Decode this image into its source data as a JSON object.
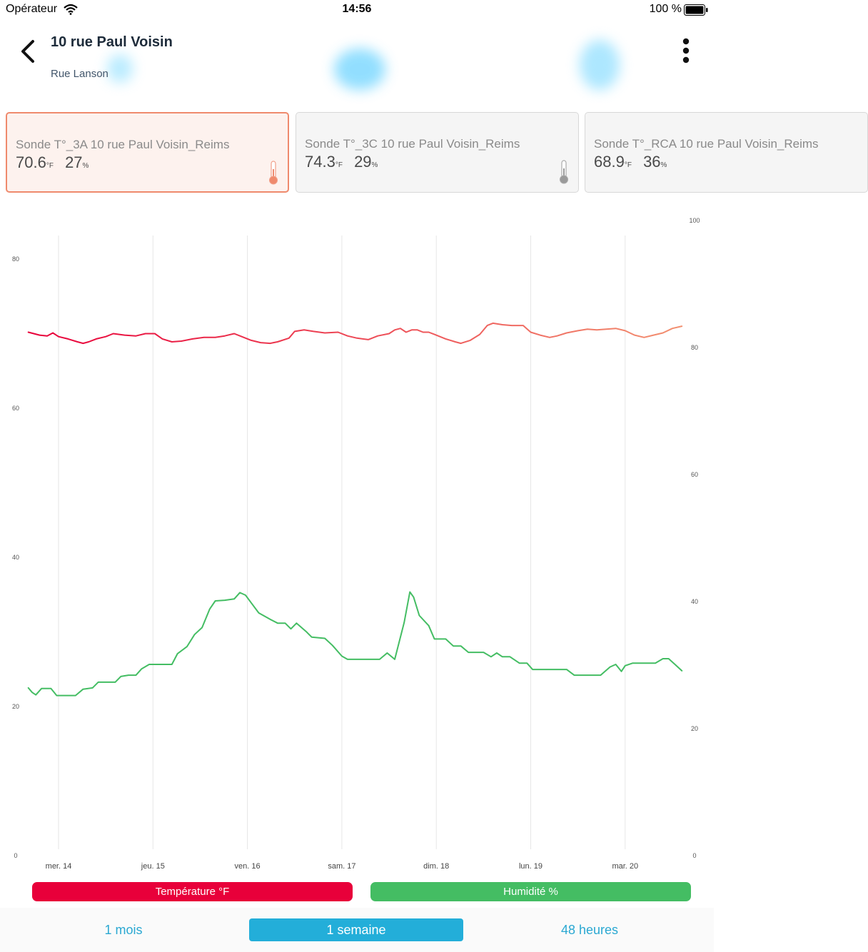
{
  "status_bar": {
    "carrier": "Opérateur",
    "time": "14:56",
    "battery": "100 %"
  },
  "header": {
    "title": "10 rue Paul Voisin",
    "subtitle": "Rue Lanson",
    "back_icon": "chevron-left-icon",
    "menu_icon": "more-vertical-icon"
  },
  "sensors": [
    {
      "name": "Sonde T°_3A 10 rue Paul Voisin_Reims",
      "temperature": "70.6",
      "temp_unit": "°F",
      "humidity": "27",
      "hum_unit": "%",
      "selected": true,
      "icon": "thermometer-icon"
    },
    {
      "name": "Sonde T°_3C 10 rue Paul Voisin_Reims",
      "temperature": "74.3",
      "temp_unit": "°F",
      "humidity": "29",
      "hum_unit": "%",
      "selected": false,
      "icon": "thermometer-icon"
    },
    {
      "name": "Sonde T°_RCA 10 rue Paul Voisin_Reims",
      "temperature": "68.9",
      "temp_unit": "°F",
      "humidity": "36",
      "hum_unit": "%",
      "selected": false,
      "icon": "thermometer-icon"
    }
  ],
  "legend": {
    "temperature": "Température °F",
    "humidity": "Humidité %"
  },
  "ranges": {
    "month": "1 mois",
    "week": "1 semaine",
    "hours48": "48 heures",
    "selected": "week"
  },
  "colors": {
    "temperature": "#e8003a",
    "humidity": "#44bd63",
    "accent": "#23aed9",
    "selected_card_border": "#ef8a6d"
  },
  "chart_data": {
    "type": "line",
    "x_range": [
      -0.3,
      6.6
    ],
    "x_ticks": [
      {
        "x": 0,
        "label": "mer. 14"
      },
      {
        "x": 1,
        "label": "jeu. 15"
      },
      {
        "x": 2,
        "label": "ven. 16"
      },
      {
        "x": 3,
        "label": "sam. 17"
      },
      {
        "x": 4,
        "label": "dim. 18"
      },
      {
        "x": 5,
        "label": "lun. 19"
      },
      {
        "x": 6,
        "label": "mar. 20"
      }
    ],
    "y_left": {
      "range": [
        0,
        80
      ],
      "ticks": [
        0,
        20,
        40,
        60,
        80
      ]
    },
    "y_right": {
      "range": [
        0,
        100
      ],
      "ticks": [
        0,
        20,
        40,
        60,
        80,
        100
      ]
    },
    "grid": "vertical",
    "series": [
      {
        "name": "Température °F",
        "axis": "left",
        "color_start": "#e8003a",
        "color_end": "#f29070",
        "points": [
          [
            -0.32,
            70.1
          ],
          [
            -0.2,
            69.7
          ],
          [
            -0.12,
            69.6
          ],
          [
            -0.06,
            70.0
          ],
          [
            0.0,
            69.5
          ],
          [
            0.1,
            69.2
          ],
          [
            0.2,
            68.8
          ],
          [
            0.26,
            68.6
          ],
          [
            0.32,
            68.8
          ],
          [
            0.4,
            69.2
          ],
          [
            0.5,
            69.5
          ],
          [
            0.58,
            69.9
          ],
          [
            0.7,
            69.7
          ],
          [
            0.82,
            69.6
          ],
          [
            0.92,
            69.9
          ],
          [
            1.02,
            69.9
          ],
          [
            1.1,
            69.2
          ],
          [
            1.2,
            68.8
          ],
          [
            1.3,
            68.9
          ],
          [
            1.42,
            69.2
          ],
          [
            1.54,
            69.4
          ],
          [
            1.66,
            69.4
          ],
          [
            1.76,
            69.6
          ],
          [
            1.86,
            69.9
          ],
          [
            1.94,
            69.5
          ],
          [
            2.04,
            69.0
          ],
          [
            2.14,
            68.7
          ],
          [
            2.24,
            68.6
          ],
          [
            2.32,
            68.8
          ],
          [
            2.44,
            69.3
          ],
          [
            2.5,
            70.2
          ],
          [
            2.6,
            70.4
          ],
          [
            2.7,
            70.2
          ],
          [
            2.82,
            70.0
          ],
          [
            2.96,
            70.1
          ],
          [
            3.06,
            69.6
          ],
          [
            3.16,
            69.3
          ],
          [
            3.28,
            69.1
          ],
          [
            3.38,
            69.6
          ],
          [
            3.5,
            69.9
          ],
          [
            3.56,
            70.4
          ],
          [
            3.62,
            70.6
          ],
          [
            3.68,
            70.1
          ],
          [
            3.74,
            70.4
          ],
          [
            3.8,
            70.4
          ],
          [
            3.86,
            70.1
          ],
          [
            3.92,
            70.1
          ],
          [
            3.98,
            69.8
          ],
          [
            4.1,
            69.2
          ],
          [
            4.2,
            68.8
          ],
          [
            4.26,
            68.6
          ],
          [
            4.36,
            69.0
          ],
          [
            4.46,
            69.8
          ],
          [
            4.54,
            71.0
          ],
          [
            4.6,
            71.3
          ],
          [
            4.7,
            71.1
          ],
          [
            4.8,
            71.0
          ],
          [
            4.92,
            71.0
          ],
          [
            5.0,
            70.1
          ],
          [
            5.1,
            69.7
          ],
          [
            5.2,
            69.4
          ],
          [
            5.28,
            69.6
          ],
          [
            5.38,
            70.0
          ],
          [
            5.5,
            70.3
          ],
          [
            5.6,
            70.5
          ],
          [
            5.7,
            70.4
          ],
          [
            5.8,
            70.5
          ],
          [
            5.9,
            70.6
          ],
          [
            6.0,
            70.3
          ],
          [
            6.1,
            69.7
          ],
          [
            6.2,
            69.4
          ],
          [
            6.3,
            69.7
          ],
          [
            6.4,
            70.0
          ],
          [
            6.5,
            70.6
          ],
          [
            6.6,
            70.9
          ]
        ]
      },
      {
        "name": "Humidité %",
        "axis": "right",
        "color": "#44bd63",
        "points": [
          [
            -0.32,
            26.3
          ],
          [
            -0.28,
            25.6
          ],
          [
            -0.24,
            25.2
          ],
          [
            -0.18,
            26.2
          ],
          [
            -0.08,
            26.2
          ],
          [
            -0.02,
            25.1
          ],
          [
            0.08,
            25.1
          ],
          [
            0.18,
            25.1
          ],
          [
            0.26,
            26.1
          ],
          [
            0.36,
            26.3
          ],
          [
            0.42,
            27.2
          ],
          [
            0.5,
            27.2
          ],
          [
            0.6,
            27.2
          ],
          [
            0.66,
            28.1
          ],
          [
            0.74,
            28.3
          ],
          [
            0.82,
            28.3
          ],
          [
            0.88,
            29.3
          ],
          [
            0.96,
            30.0
          ],
          [
            1.06,
            30.0
          ],
          [
            1.2,
            30.0
          ],
          [
            1.26,
            31.7
          ],
          [
            1.36,
            32.8
          ],
          [
            1.44,
            34.7
          ],
          [
            1.52,
            35.8
          ],
          [
            1.6,
            38.7
          ],
          [
            1.66,
            40.0
          ],
          [
            1.76,
            40.1
          ],
          [
            1.86,
            40.3
          ],
          [
            1.92,
            41.3
          ],
          [
            1.98,
            40.9
          ],
          [
            2.04,
            39.7
          ],
          [
            2.12,
            38.1
          ],
          [
            2.24,
            37.1
          ],
          [
            2.32,
            36.5
          ],
          [
            2.4,
            36.5
          ],
          [
            2.46,
            35.6
          ],
          [
            2.52,
            36.5
          ],
          [
            2.62,
            35.2
          ],
          [
            2.68,
            34.3
          ],
          [
            2.82,
            34.1
          ],
          [
            2.9,
            33.0
          ],
          [
            3.0,
            31.3
          ],
          [
            3.06,
            30.8
          ],
          [
            3.24,
            30.8
          ],
          [
            3.4,
            30.8
          ],
          [
            3.48,
            31.8
          ],
          [
            3.56,
            30.8
          ],
          [
            3.66,
            36.6
          ],
          [
            3.72,
            41.4
          ],
          [
            3.76,
            40.6
          ],
          [
            3.82,
            37.7
          ],
          [
            3.92,
            36.1
          ],
          [
            3.98,
            34.0
          ],
          [
            4.1,
            34.0
          ],
          [
            4.18,
            32.9
          ],
          [
            4.26,
            32.9
          ],
          [
            4.34,
            31.9
          ],
          [
            4.5,
            31.9
          ],
          [
            4.58,
            31.2
          ],
          [
            4.64,
            31.8
          ],
          [
            4.7,
            31.2
          ],
          [
            4.78,
            31.2
          ],
          [
            4.88,
            30.2
          ],
          [
            4.96,
            30.2
          ],
          [
            5.02,
            29.2
          ],
          [
            5.2,
            29.2
          ],
          [
            5.38,
            29.2
          ],
          [
            5.46,
            28.3
          ],
          [
            5.6,
            28.3
          ],
          [
            5.74,
            28.3
          ],
          [
            5.84,
            29.6
          ],
          [
            5.9,
            30.0
          ],
          [
            5.96,
            28.9
          ],
          [
            6.0,
            29.8
          ],
          [
            6.08,
            30.2
          ],
          [
            6.2,
            30.2
          ],
          [
            6.32,
            30.2
          ],
          [
            6.4,
            30.9
          ],
          [
            6.46,
            30.9
          ],
          [
            6.52,
            30.1
          ],
          [
            6.6,
            29.0
          ]
        ]
      }
    ]
  }
}
